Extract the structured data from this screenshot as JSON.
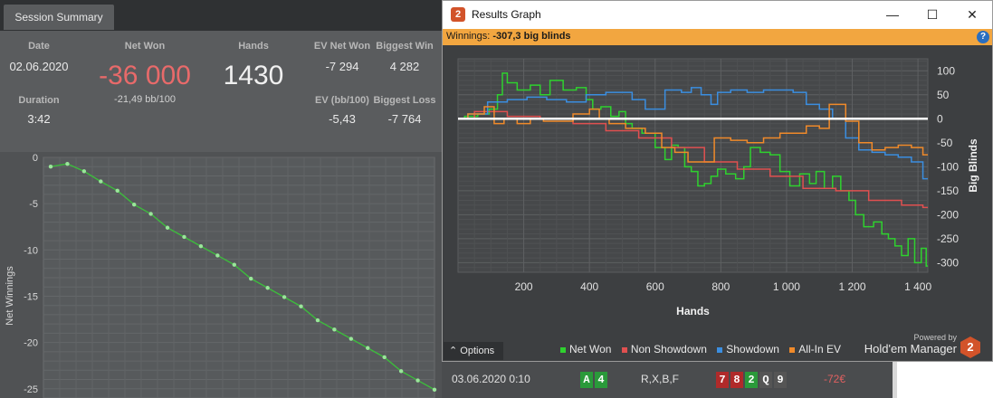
{
  "left_panel": {
    "tab_label": "Session Summary",
    "labels": {
      "date": "Date",
      "net_won": "Net Won",
      "hands": "Hands",
      "ev_net_won": "EV Net Won",
      "biggest_win": "Biggest Win",
      "duration": "Duration",
      "ev_bb100": "EV (bb/100)",
      "biggest_loss": "Biggest Loss"
    },
    "values": {
      "date": "02.06.2020",
      "net_won": "-36 000",
      "hands": "1430",
      "ev_net_won": "-7 294",
      "biggest_win": "4 282",
      "net_won_sub": "-21,49 bb/100",
      "duration": "3:42",
      "ev_bb100": "-5,43",
      "biggest_loss": "-7 764"
    },
    "colors": {
      "net_won": "#e86a6a"
    }
  },
  "results_window": {
    "title": "Results Graph",
    "app_icon": "2",
    "controls": {
      "minimize": "—",
      "maximize": "☐",
      "close": "✕"
    },
    "winnings_label": "Winnings:",
    "winnings_value": "-307,3 big blinds",
    "help": "?",
    "options_label": "⌃ Options",
    "legend": [
      {
        "label": "Net Won",
        "color": "#2fd12f"
      },
      {
        "label": "Non Showdown",
        "color": "#e05050"
      },
      {
        "label": "Showdown",
        "color": "#3b8ee0"
      },
      {
        "label": "All-In EV",
        "color": "#f08a2a"
      }
    ],
    "powered_by": "Powered by",
    "brand": "Hold'em Manager",
    "brand_icon": "2"
  },
  "bottom_row": {
    "date": "03.06.2020 0:10",
    "actions": "R,X,B,F",
    "result": "-72€",
    "hole_cards": [
      "A",
      "4"
    ],
    "board_cards": [
      "7",
      "8",
      "2",
      "Q",
      "9"
    ]
  },
  "chart_data": [
    {
      "type": "line",
      "title": "",
      "xlabel": "",
      "ylabel": "Net Winnings",
      "ylim": [
        -26,
        0
      ],
      "yticks": [
        0,
        -5,
        -10,
        -15,
        -20,
        -25
      ],
      "grid": true,
      "series": [
        {
          "color": "#3dbb3d",
          "values": [
            -1,
            -0.7,
            -1.5,
            -2.6,
            -3.6,
            -5.1,
            -6.1,
            -7.6,
            -8.6,
            -9.6,
            -10.6,
            -11.6,
            -13.1,
            -14.1,
            -15.1,
            -16.1,
            -17.6,
            -18.6,
            -19.6,
            -20.6,
            -21.6,
            -23.1,
            -24.1,
            -25.1
          ]
        }
      ]
    },
    {
      "type": "line",
      "title": "",
      "xlabel": "Hands",
      "ylabel": "Big Blinds",
      "xlim": [
        0,
        1430
      ],
      "ylim": [
        -320,
        125
      ],
      "xticks": [
        "200",
        "400",
        "600",
        "800",
        "1 000",
        "1 200",
        "1 400"
      ],
      "xtick_values": [
        200,
        400,
        600,
        800,
        1000,
        1200,
        1400
      ],
      "yticks": [
        100,
        50,
        0,
        -50,
        -100,
        -150,
        -200,
        -250,
        -300
      ],
      "grid": true,
      "legend_position": "bottom",
      "series": [
        {
          "name": "Net Won",
          "color": "#2fd12f",
          "x": [
            0,
            40,
            80,
            110,
            130,
            140,
            160,
            200,
            240,
            260,
            300,
            340,
            380,
            400,
            420,
            450,
            480,
            500,
            520,
            540,
            580,
            620,
            640,
            660,
            680,
            700,
            720,
            740,
            760,
            780,
            800,
            830,
            860,
            880,
            900,
            940,
            960,
            1000,
            1020,
            1060,
            1080,
            1100,
            1130,
            1150,
            1180,
            1200,
            1220,
            1250,
            1280,
            1300,
            1320,
            1340,
            1360,
            1380,
            1400,
            1420,
            1430
          ],
          "y": [
            0,
            5,
            10,
            20,
            50,
            95,
            75,
            60,
            70,
            50,
            80,
            60,
            65,
            40,
            20,
            25,
            5,
            15,
            -10,
            -20,
            -30,
            -60,
            -85,
            -55,
            -60,
            -100,
            -110,
            -140,
            -135,
            -120,
            -105,
            -115,
            -125,
            -100,
            -60,
            -70,
            -75,
            -110,
            -140,
            -115,
            -135,
            -110,
            -145,
            -120,
            -150,
            -170,
            -200,
            -225,
            -215,
            -240,
            -250,
            -265,
            -285,
            -250,
            -300,
            -270,
            -307
          ]
        },
        {
          "name": "Non Showdown",
          "color": "#e05050",
          "x": [
            0,
            100,
            200,
            300,
            400,
            500,
            600,
            700,
            800,
            900,
            1000,
            1100,
            1200,
            1300,
            1400,
            1430
          ],
          "y": [
            0,
            15,
            5,
            0,
            -10,
            -25,
            -40,
            -60,
            -90,
            -105,
            -120,
            -145,
            -150,
            -170,
            -180,
            -185
          ]
        },
        {
          "name": "Showdown",
          "color": "#3b8ee0",
          "x": [
            0,
            60,
            120,
            180,
            240,
            300,
            360,
            420,
            480,
            520,
            540,
            600,
            660,
            700,
            720,
            760,
            780,
            800,
            860,
            900,
            960,
            1000,
            1040,
            1080,
            1120,
            1160,
            1200,
            1240,
            1280,
            1320,
            1360,
            1400,
            1430
          ],
          "y": [
            0,
            10,
            35,
            40,
            45,
            40,
            35,
            50,
            55,
            55,
            40,
            20,
            60,
            55,
            65,
            50,
            30,
            55,
            60,
            55,
            60,
            60,
            55,
            30,
            20,
            0,
            -40,
            -65,
            -70,
            -75,
            -80,
            -90,
            -125
          ]
        },
        {
          "name": "All-In EV",
          "color": "#f08a2a",
          "x": [
            0,
            60,
            100,
            120,
            160,
            200,
            240,
            280,
            320,
            380,
            420,
            440,
            480,
            540,
            600,
            640,
            680,
            720,
            760,
            800,
            860,
            900,
            960,
            1000,
            1040,
            1080,
            1120,
            1140,
            1160,
            1200,
            1240,
            1280,
            1320,
            1360,
            1400,
            1430
          ],
          "y": [
            0,
            10,
            25,
            -10,
            0,
            -10,
            0,
            -5,
            -5,
            10,
            20,
            0,
            -10,
            -20,
            -30,
            -60,
            -70,
            -90,
            -90,
            -40,
            -45,
            -50,
            -40,
            -30,
            -30,
            -15,
            -20,
            30,
            30,
            -5,
            -50,
            -65,
            -60,
            -55,
            -60,
            -75
          ]
        }
      ]
    }
  ]
}
